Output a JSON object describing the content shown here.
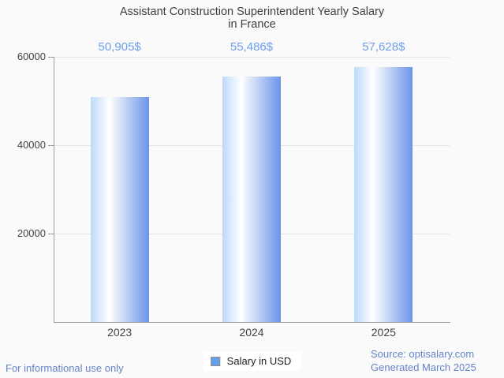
{
  "title": {
    "line1": "Assistant Construction Superintendent Yearly Salary",
    "line2": "in France"
  },
  "legend": {
    "label": "Salary in USD"
  },
  "footer": {
    "left_note": "For informational use only",
    "source": "Source: optisalary.com",
    "generated": "Generated March 2025"
  },
  "colors": {
    "background": "#fafafa",
    "title_text": "#3f3f3f",
    "axis_text": "#424242",
    "accent_blue": "#6d9eeb",
    "footer_blue": "#6583c8",
    "gridline": "#e6e6e6",
    "axis_line": "#9a9a9a",
    "bar_gradient_left": "#bcd9fb",
    "bar_gradient_mid": "#ffffff",
    "bar_gradient_right": "#6b94e8",
    "legend_swatch_fill": "#64a0e4",
    "legend_swatch_border": "#8c8c8c"
  },
  "chart_data": {
    "type": "bar",
    "title": "Assistant Construction Superintendent Yearly Salary in France",
    "categories": [
      "2023",
      "2024",
      "2025"
    ],
    "series": [
      {
        "name": "Salary in USD",
        "values": [
          50905,
          55486,
          57628
        ]
      }
    ],
    "annotations": [
      "50,905$",
      "55,486$",
      "57,628$"
    ],
    "xlabel": "",
    "ylabel": "",
    "ylim": [
      0,
      60000
    ],
    "y_ticks": [
      20000,
      40000,
      60000
    ],
    "grid": true,
    "legend_position": "bottom"
  }
}
